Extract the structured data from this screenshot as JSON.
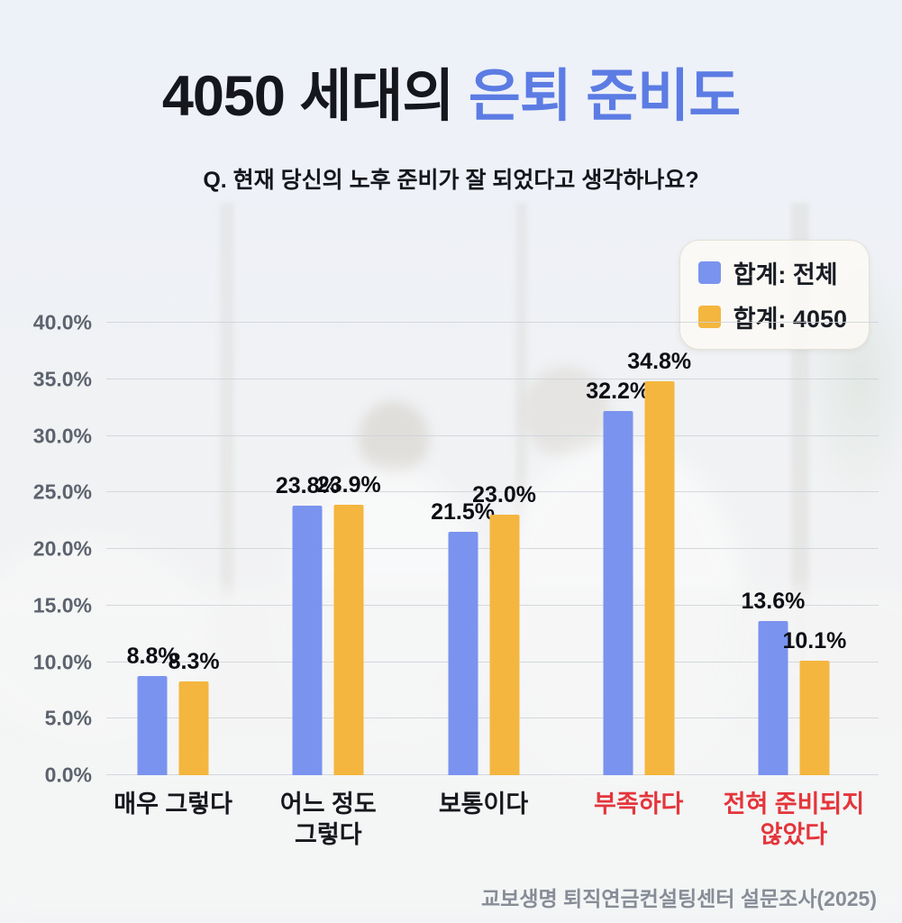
{
  "header": {
    "title_main": "4050 세대의 ",
    "title_accent": "은퇴 준비도",
    "subtitle": "Q. 현재 당신의 노후 준비가 잘 되었다고 생각하나요?"
  },
  "colors": {
    "accent_blue": "#5c7ce4",
    "bar_blue": "#7a93ef",
    "bar_orange": "#f4b63e",
    "category_red": "#e4353b",
    "category_dark": "#16181d",
    "grid": "#ced2d8"
  },
  "chart_data": {
    "type": "bar",
    "title": "4050 세대의 은퇴 준비도",
    "subtitle": "Q. 현재 당신의 노후 준비가 잘 되었다고 생각하나요?",
    "categories": [
      "매우 그렇다",
      "어느 정도\n그렇다",
      "보통이다",
      "부족하다",
      "전혀 준비되지\n않았다"
    ],
    "category_colors": [
      "#16181d",
      "#16181d",
      "#16181d",
      "#e4353b",
      "#e4353b"
    ],
    "series": [
      {
        "name": "합계: 전체",
        "key": "total-all",
        "color": "#7a93ef",
        "values": [
          8.8,
          23.8,
          21.5,
          32.2,
          13.6
        ]
      },
      {
        "name": "합계: 4050",
        "key": "total-4050",
        "color": "#f4b63e",
        "values": [
          8.3,
          23.9,
          23.0,
          34.8,
          10.1
        ]
      }
    ],
    "xlabel": "",
    "ylabel": "",
    "ylim": [
      0,
      40
    ],
    "ytick_step": 5,
    "grid": true,
    "legend_position": "top-right",
    "value_labels": true
  },
  "footer": {
    "source": "교보생명 퇴직연금컨설팅센터 설문조사(2025)"
  }
}
